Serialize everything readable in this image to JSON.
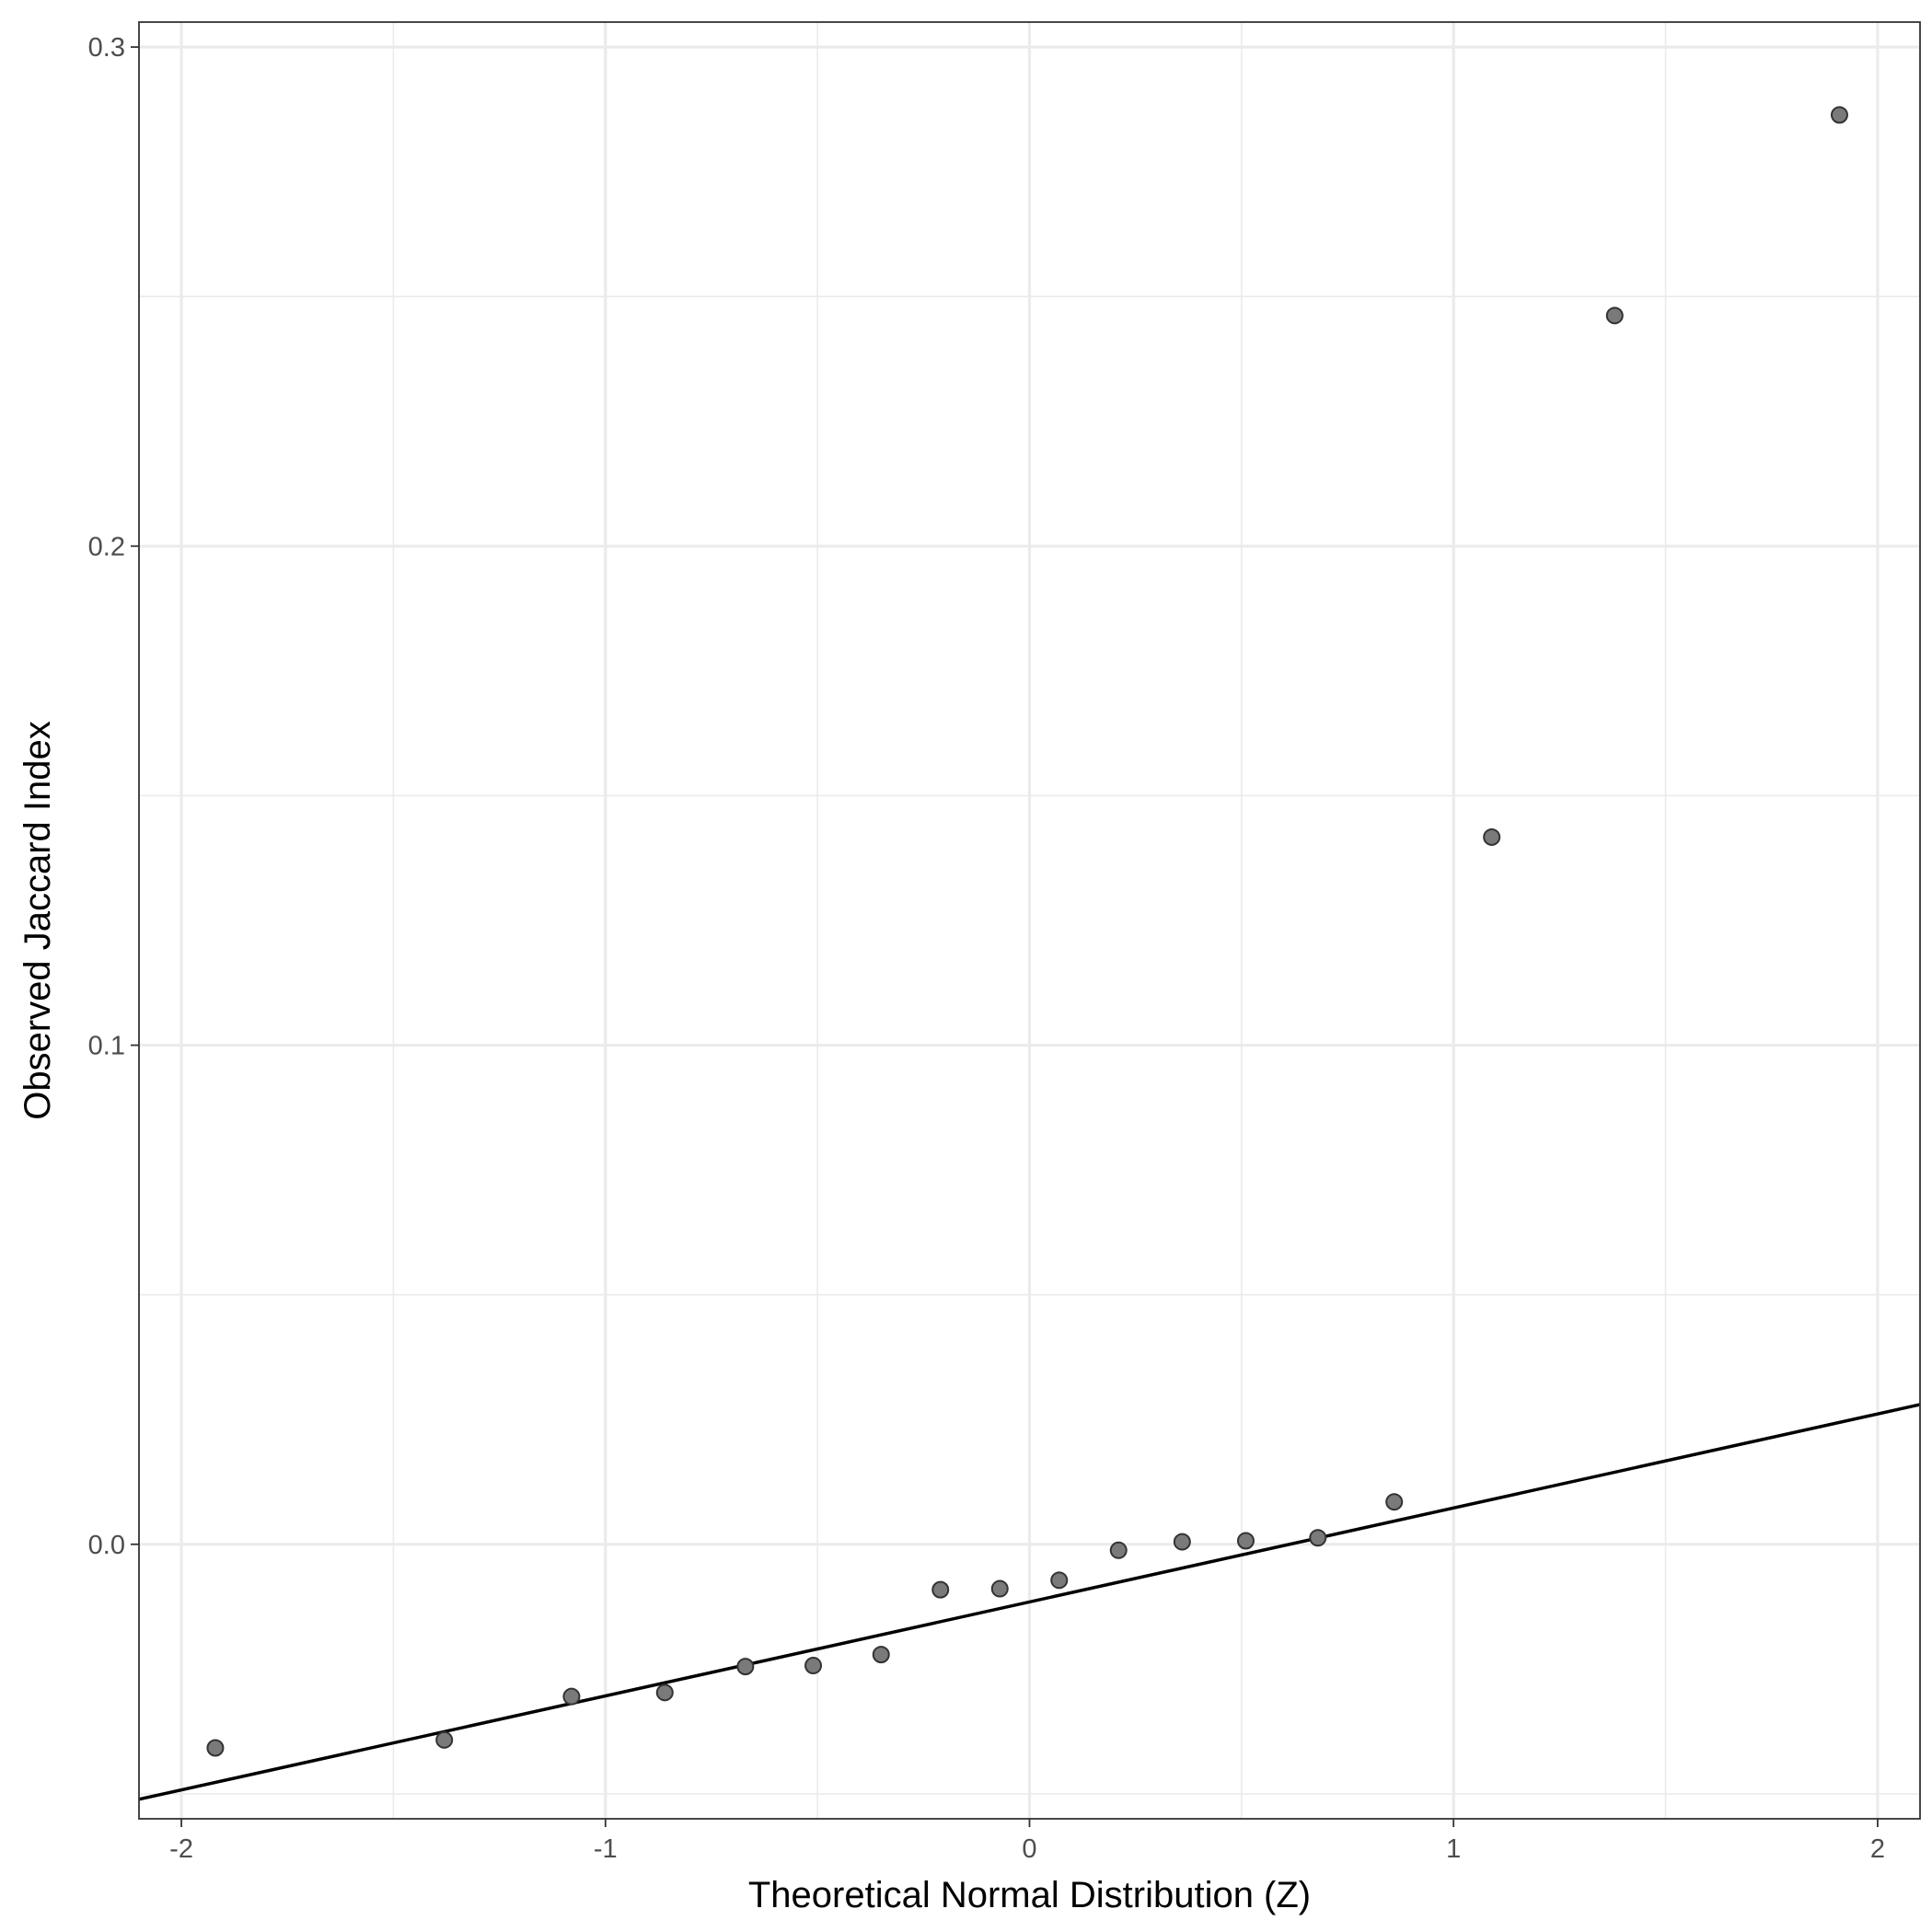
{
  "chart_data": {
    "type": "scatter",
    "title": "",
    "xlabel": "Theoretical Normal Distribution (Z)",
    "ylabel": "Observed Jaccard Index",
    "xlim": [
      -2.1,
      2.1
    ],
    "ylim": [
      -0.055,
      0.305
    ],
    "x_ticks": [
      -2,
      -1,
      0,
      1,
      2
    ],
    "x_tick_labels": [
      "-2",
      "-1",
      "0",
      "1",
      "2"
    ],
    "y_ticks": [
      0.0,
      0.1,
      0.2,
      0.3
    ],
    "y_tick_labels": [
      "0.0",
      "0.1",
      "0.2",
      "0.3"
    ],
    "grid": true,
    "legend": "none",
    "series": [
      {
        "type": "scatter",
        "points": [
          {
            "x": -1.92,
            "y": -0.0408
          },
          {
            "x": -1.38,
            "y": -0.0392
          },
          {
            "x": -1.08,
            "y": -0.0305
          },
          {
            "x": -0.86,
            "y": -0.0297
          },
          {
            "x": -0.67,
            "y": -0.0245
          },
          {
            "x": -0.51,
            "y": -0.0243
          },
          {
            "x": -0.35,
            "y": -0.0221
          },
          {
            "x": -0.21,
            "y": -0.0091
          },
          {
            "x": -0.07,
            "y": -0.0089
          },
          {
            "x": 0.07,
            "y": -0.0072
          },
          {
            "x": 0.21,
            "y": -0.0012
          },
          {
            "x": 0.36,
            "y": 0.0005
          },
          {
            "x": 0.51,
            "y": 0.0007
          },
          {
            "x": 0.68,
            "y": 0.0013
          },
          {
            "x": 0.86,
            "y": 0.0085
          },
          {
            "x": 1.09,
            "y": 0.1417
          },
          {
            "x": 1.38,
            "y": 0.2462
          },
          {
            "x": 1.91,
            "y": 0.2864
          }
        ]
      },
      {
        "type": "line",
        "points": [
          {
            "x": -2.1,
            "y": -0.0511
          },
          {
            "x": 2.1,
            "y": 0.028
          }
        ]
      }
    ],
    "colors": {
      "point_fill": "#7a7a7a",
      "point_stroke": "#333333",
      "line": "#000000",
      "grid": "#ebebeb",
      "panel_border": "#333333"
    }
  }
}
